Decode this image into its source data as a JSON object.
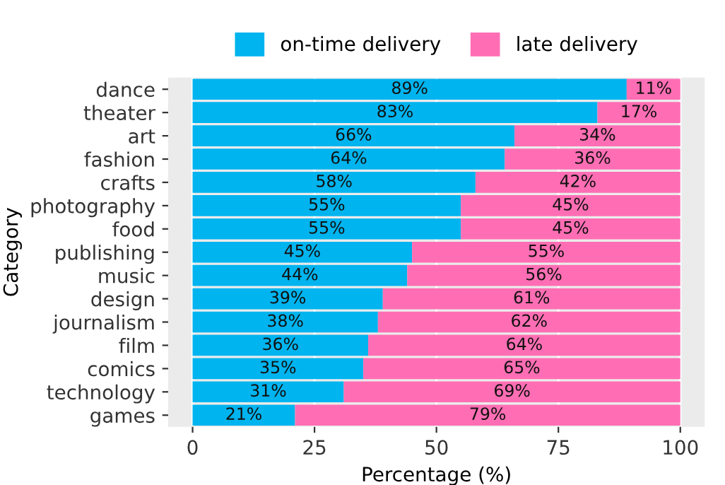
{
  "chart_data": {
    "type": "bar",
    "orientation": "horizontal",
    "stacked": true,
    "categories": [
      "dance",
      "theater",
      "art",
      "fashion",
      "crafts",
      "photography",
      "food",
      "publishing",
      "music",
      "design",
      "journalism",
      "film",
      "comics",
      "technology",
      "games"
    ],
    "series": [
      {
        "name": "on-time delivery",
        "color": "#00b4ef",
        "values": [
          89,
          83,
          66,
          64,
          58,
          55,
          55,
          45,
          44,
          39,
          38,
          36,
          35,
          31,
          21
        ]
      },
      {
        "name": "late delivery",
        "color": "#ff6eb4",
        "values": [
          11,
          17,
          34,
          36,
          42,
          45,
          45,
          55,
          56,
          61,
          62,
          64,
          65,
          69,
          79
        ]
      }
    ],
    "value_labels": [
      [
        "89%",
        "83%",
        "66%",
        "64%",
        "58%",
        "55%",
        "55%",
        "45%",
        "44%",
        "39%",
        "38%",
        "36%",
        "35%",
        "31%",
        "21%"
      ],
      [
        "11%",
        "17%",
        "34%",
        "36%",
        "42%",
        "45%",
        "45%",
        "55%",
        "56%",
        "61%",
        "62%",
        "64%",
        "65%",
        "69%",
        "79%"
      ]
    ],
    "xlabel": "Percentage (%)",
    "ylabel": "Category",
    "xlim": [
      -5,
      105
    ],
    "xticks": [
      0,
      25,
      50,
      75,
      100
    ],
    "grid": "x",
    "legend": "top"
  }
}
